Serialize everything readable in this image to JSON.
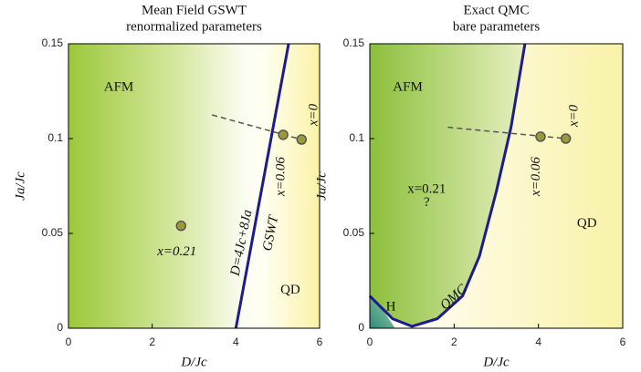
{
  "chart_data": [
    {
      "type": "line",
      "title": "Mean Field GSWT",
      "subtitle": "renormalized parameters",
      "xlabel": "D/Jc",
      "ylabel": "Ja/Jc",
      "xlim": [
        0,
        6
      ],
      "ylim": [
        0,
        0.15
      ],
      "xticks": [
        0,
        2,
        4,
        6
      ],
      "yticks": [
        0,
        0.05,
        0.1,
        0.15
      ],
      "series": [
        {
          "name": "GSWT",
          "color": "#1c1c8c",
          "x": [
            4,
            5.26
          ],
          "values": [
            0,
            0.15
          ]
        },
        {
          "color": "#555555",
          "x": [
            3.43,
            5.57
          ],
          "values": [
            0.1125,
            0.0995
          ]
        }
      ],
      "points": {
        "color": "#9a9a3a",
        "x": [
          5.13,
          5.57,
          2.69
        ],
        "values": [
          0.102,
          0.0995,
          0.054
        ],
        "labels": [
          "x=0.06",
          "x=0",
          "x=0.21"
        ]
      },
      "annotations": [
        "AFM",
        "QD",
        "D=4Jc+8Ja"
      ]
    },
    {
      "type": "line",
      "title": "Exact QMC",
      "subtitle": "bare parameters",
      "xlabel": "D/Jc",
      "ylabel": "Ja/Jc",
      "xlim": [
        0,
        6
      ],
      "ylim": [
        0,
        0.15
      ],
      "xticks": [
        0,
        2,
        4,
        6
      ],
      "yticks": [
        0,
        0.05,
        0.1,
        0.15
      ],
      "series": [
        {
          "name": "QMC",
          "color": "#1c1c8c",
          "x": [
            0,
            0.54,
            1.0,
            1.6,
            2.2,
            2.6,
            3.0,
            3.35,
            3.68
          ],
          "values": [
            0.017,
            0.005,
            0.001,
            0.005,
            0.017,
            0.038,
            0.072,
            0.106,
            0.15
          ]
        },
        {
          "color": "#555555",
          "x": [
            1.85,
            4.65
          ],
          "values": [
            0.106,
            0.1
          ]
        }
      ],
      "points": {
        "color": "#9a9a3a",
        "x": [
          4.05,
          4.65
        ],
        "values": [
          0.101,
          0.1
        ],
        "labels": [
          "x=0.06",
          "x=0"
        ]
      },
      "annotations": [
        "AFM",
        "QD",
        "H",
        "x=0.21",
        "?"
      ]
    }
  ]
}
